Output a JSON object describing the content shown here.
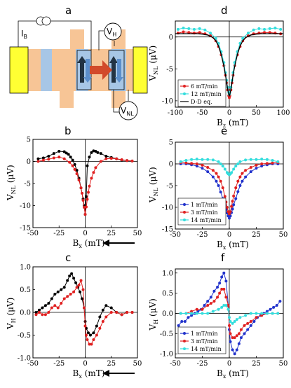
{
  "panel_letters": {
    "a": "a",
    "b": "b",
    "c": "c",
    "d": "d",
    "e": "e",
    "f": "f"
  },
  "device": {
    "source_label": "I",
    "source_sub": "B",
    "vh_label": "V",
    "vh_sub": "H",
    "vnl_label": "V",
    "vnl_sub": "NL",
    "colors": {
      "yellow": "#ffff33",
      "bar": "#f7c596",
      "blue": "#a7c6e6",
      "arrow": "#d24a2a"
    }
  },
  "chart_data": [
    {
      "id": "b",
      "type": "scatter",
      "ylabel": "V",
      "ylabel_sub": "NL",
      "ylabel_unit": " (μV)",
      "xlabel": "B",
      "xlabel_sub": "x",
      "xlabel_unit": " (mT)",
      "xlim": [
        -50,
        50
      ],
      "ylim": [
        -15,
        5
      ],
      "xticks": [
        "-50",
        "-25",
        "0",
        "25",
        "50"
      ],
      "yticks": [
        "5",
        "0",
        "-5",
        "-10",
        "-15"
      ],
      "sweep_arrow": "left",
      "series": [
        {
          "color": "#000000",
          "x": [
            -45,
            -40,
            -35,
            -30,
            -25,
            -20,
            -18,
            -16,
            -14,
            -12,
            -10,
            -8,
            -6,
            -4,
            -2,
            -1,
            0,
            1,
            2,
            4,
            6,
            8,
            10,
            12,
            15,
            20,
            25,
            30,
            35,
            40,
            45
          ],
          "y": [
            0.6,
            0.8,
            1.2,
            1.8,
            2.3,
            2.2,
            1.9,
            1.6,
            1.0,
            0.3,
            -0.7,
            -2.0,
            -3.8,
            -6.0,
            -8.5,
            -10.0,
            -12.0,
            -8.0,
            -1.0,
            1.0,
            2.0,
            2.4,
            2.3,
            2.0,
            1.8,
            1.2,
            0.9,
            0.6,
            0.3,
            0.2,
            0.1
          ]
        },
        {
          "color": "#e02020",
          "x": [
            -45,
            -40,
            -35,
            -30,
            -25,
            -20,
            -15,
            -12,
            -10,
            -8,
            -6,
            -4,
            -3,
            -2,
            -1,
            0,
            1,
            2,
            3,
            4,
            6,
            8,
            10,
            15,
            20,
            25,
            30,
            35,
            40,
            45
          ],
          "y": [
            0.0,
            0.3,
            0.5,
            0.8,
            1.0,
            0.6,
            -0.2,
            -1.0,
            -1.8,
            -2.8,
            -4.2,
            -6.0,
            -7.2,
            -8.8,
            -10.4,
            -12.0,
            -10.3,
            -8.6,
            -7.0,
            -5.6,
            -3.8,
            -2.5,
            -1.4,
            0.0,
            0.6,
            0.7,
            0.6,
            0.4,
            0.2,
            0.1
          ]
        }
      ]
    },
    {
      "id": "c",
      "type": "scatter",
      "ylabel": "V",
      "ylabel_sub": "H",
      "ylabel_unit": " (μV)",
      "xlabel": "B",
      "xlabel_sub": "x",
      "xlabel_unit": " (mT)",
      "xlim": [
        -50,
        50
      ],
      "ylim": [
        -1.0,
        1.0
      ],
      "xticks": [
        "-50",
        "-25",
        "0",
        "25",
        "50"
      ],
      "yticks": [
        "1.0",
        "0.5",
        "0.0",
        "-0.5",
        "-1.0"
      ],
      "sweep_arrow": "left",
      "series": [
        {
          "color": "#000000",
          "x": [
            -47,
            -44,
            -41,
            -38,
            -35,
            -32,
            -29,
            -26,
            -23,
            -20,
            -17,
            -15,
            -13,
            -11,
            -9,
            -7,
            -5,
            -3,
            -1,
            0,
            1,
            3,
            5,
            8,
            11,
            14,
            17,
            20,
            25,
            30,
            35,
            40,
            45
          ],
          "y": [
            0.0,
            0.05,
            0.1,
            0.15,
            0.2,
            0.3,
            0.4,
            0.45,
            0.5,
            0.55,
            0.7,
            0.8,
            0.85,
            0.75,
            0.65,
            0.55,
            0.45,
            0.3,
            0.1,
            -0.2,
            -0.35,
            -0.45,
            -0.5,
            -0.45,
            -0.3,
            -0.1,
            0.05,
            0.15,
            0.1,
            0.0,
            -0.05,
            0.0,
            0.0
          ]
        },
        {
          "color": "#e02020",
          "x": [
            -47,
            -44,
            -41,
            -38,
            -35,
            -32,
            -29,
            -26,
            -23,
            -20,
            -17,
            -14,
            -11,
            -8,
            -6,
            -4,
            -2,
            -1,
            0,
            1,
            2,
            4,
            6,
            8,
            11,
            14,
            17,
            20,
            25,
            30,
            35,
            40,
            45
          ],
          "y": [
            -0.05,
            0.0,
            -0.05,
            -0.05,
            0.0,
            0.1,
            0.15,
            0.1,
            0.2,
            0.3,
            0.35,
            0.4,
            0.45,
            0.55,
            0.6,
            0.7,
            0.5,
            0.1,
            -0.3,
            -0.5,
            -0.6,
            -0.7,
            -0.7,
            -0.6,
            -0.5,
            -0.35,
            -0.2,
            -0.1,
            0.0,
            0.0,
            -0.05,
            0.0,
            0.0
          ]
        }
      ]
    },
    {
      "id": "d",
      "type": "scatter",
      "ylabel": "V",
      "ylabel_sub": "NL",
      "ylabel_unit": " (μV)",
      "xlabel": "B",
      "xlabel_sub": "z",
      "xlabel_unit": " (mT)",
      "xlim": [
        -100,
        100
      ],
      "ylim": [
        -11,
        2.5
      ],
      "xticks": [
        "-100",
        "-50",
        "0",
        "50",
        "100"
      ],
      "yticks": [
        "0",
        "-5",
        "-10"
      ],
      "ytick_vals": [
        0,
        -5,
        -10
      ],
      "legend": [
        "6 mT/min",
        "12 mT/min",
        "D-D eq."
      ],
      "series": [
        {
          "name": "6 mT/min",
          "color": "#e02020",
          "x": [
            -95,
            -85,
            -75,
            -65,
            -55,
            -45,
            -35,
            -25,
            -20,
            -15,
            -10,
            -7,
            -5,
            -3,
            -1,
            0,
            1,
            3,
            5,
            7,
            10,
            15,
            20,
            25,
            35,
            45,
            55,
            65,
            75,
            85,
            95
          ],
          "y": [
            0.6,
            0.8,
            0.7,
            0.6,
            0.7,
            0.5,
            0.2,
            -0.6,
            -1.5,
            -2.8,
            -4.5,
            -6.0,
            -7.2,
            -8.3,
            -9.2,
            -9.5,
            -9.2,
            -8.3,
            -7.2,
            -6.0,
            -4.5,
            -2.8,
            -1.5,
            -0.6,
            0.2,
            0.5,
            0.6,
            0.7,
            0.7,
            0.6,
            0.5
          ]
        },
        {
          "name": "12 mT/min",
          "color": "#33dddd",
          "x": [
            -95,
            -85,
            -75,
            -65,
            -55,
            -45,
            -35,
            -25,
            -20,
            -15,
            -10,
            -7,
            -5,
            -3,
            -1,
            0,
            1,
            3,
            5,
            7,
            10,
            15,
            20,
            25,
            35,
            45,
            55,
            65,
            75,
            85,
            95
          ],
          "y": [
            1.2,
            1.4,
            1.3,
            1.2,
            1.3,
            1.1,
            0.6,
            -0.2,
            -1.0,
            -2.3,
            -4.0,
            -5.6,
            -6.8,
            -7.9,
            -8.7,
            -9.0,
            -8.7,
            -7.9,
            -6.8,
            -5.6,
            -4.0,
            -2.3,
            -1.0,
            -0.2,
            0.6,
            1.1,
            1.3,
            1.2,
            1.3,
            1.4,
            1.2
          ]
        },
        {
          "name": "D-D eq.",
          "color": "#000000",
          "line": true,
          "x": [
            -100,
            -80,
            -60,
            -50,
            -40,
            -30,
            -25,
            -20,
            -15,
            -10,
            -7,
            -5,
            -3,
            -1,
            0,
            1,
            3,
            5,
            7,
            10,
            15,
            20,
            25,
            30,
            40,
            50,
            60,
            80,
            100
          ],
          "y": [
            0.5,
            0.5,
            0.5,
            0.45,
            0.3,
            -0.1,
            -0.6,
            -1.4,
            -2.7,
            -4.6,
            -6.0,
            -7.1,
            -8.2,
            -9.0,
            -9.2,
            -9.0,
            -8.2,
            -7.1,
            -6.0,
            -4.6,
            -2.7,
            -1.4,
            -0.6,
            -0.1,
            0.3,
            0.45,
            0.5,
            0.5,
            0.5
          ]
        }
      ]
    },
    {
      "id": "e",
      "type": "scatter",
      "ylabel": "V",
      "ylabel_sub": "NL",
      "ylabel_unit": " (μV)",
      "xlabel": "B",
      "xlabel_sub": "x",
      "xlabel_unit": " (mT)",
      "xlim": [
        -50,
        50
      ],
      "ylim": [
        -15,
        5
      ],
      "xticks": [
        "-50",
        "-25",
        "0",
        "25",
        "50"
      ],
      "yticks": [
        "5",
        "0",
        "-5",
        "-10",
        "-15"
      ],
      "legend": [
        "1 mT/min",
        "3 mT/min",
        "14 mT/min"
      ],
      "series": [
        {
          "name": "1 mT/min",
          "color": "#2233cc",
          "x": [
            -45,
            -40,
            -35,
            -30,
            -25,
            -20,
            -15,
            -12,
            -10,
            -8,
            -6,
            -4,
            -3,
            -2,
            -1,
            0,
            1,
            2,
            3,
            4,
            6,
            8,
            10,
            12,
            15,
            20,
            25,
            30,
            35,
            40,
            45
          ],
          "y": [
            0.0,
            0.0,
            -0.2,
            -0.5,
            -1.0,
            -1.8,
            -3.0,
            -4.0,
            -5.0,
            -6.5,
            -8.0,
            -9.5,
            -10.5,
            -11.3,
            -12.0,
            -12.5,
            -12.0,
            -11.2,
            -10.4,
            -9.4,
            -8.0,
            -6.4,
            -5.0,
            -4.0,
            -3.0,
            -1.8,
            -1.0,
            -0.5,
            -0.2,
            0.0,
            0.0
          ]
        },
        {
          "name": "3 mT/min",
          "color": "#e02020",
          "x": [
            -45,
            -40,
            -35,
            -30,
            -25,
            -20,
            -15,
            -12,
            -10,
            -8,
            -6,
            -4,
            -3,
            -2,
            -1,
            0,
            1,
            2,
            3,
            4,
            6,
            8,
            10,
            12,
            15,
            20,
            25,
            30,
            35,
            40,
            45
          ],
          "y": [
            0.3,
            0.2,
            0.1,
            0.0,
            -0.3,
            -0.8,
            -1.5,
            -2.2,
            -3.0,
            -4.0,
            -5.5,
            -7.5,
            -8.8,
            -10.0,
            -11.0,
            -11.5,
            -11.0,
            -9.8,
            -8.6,
            -7.4,
            -5.5,
            -4.0,
            -3.0,
            -2.2,
            -1.5,
            -0.8,
            -0.3,
            0.0,
            0.1,
            0.2,
            0.3
          ]
        },
        {
          "name": "14 mT/min",
          "color": "#33dddd",
          "x": [
            -45,
            -40,
            -35,
            -30,
            -25,
            -20,
            -15,
            -10,
            -8,
            -6,
            -4,
            -2,
            -1,
            0,
            1,
            2,
            4,
            6,
            8,
            10,
            15,
            20,
            25,
            30,
            35,
            40,
            45
          ],
          "y": [
            0.5,
            0.8,
            1.0,
            1.1,
            1.0,
            1.0,
            0.9,
            0.5,
            0.0,
            -0.5,
            -1.2,
            -2.0,
            -2.3,
            -2.5,
            -2.3,
            -2.0,
            -1.2,
            -0.5,
            0.0,
            0.5,
            0.9,
            1.0,
            1.0,
            1.1,
            1.0,
            0.8,
            0.5
          ]
        }
      ]
    },
    {
      "id": "f",
      "type": "scatter",
      "ylabel": "V",
      "ylabel_sub": "H",
      "ylabel_unit": " (μV)",
      "xlabel": "B",
      "xlabel_sub": "x",
      "xlabel_unit": " (mT)",
      "xlim": [
        -50,
        50
      ],
      "ylim": [
        -1.1,
        1.1
      ],
      "xticks": [
        "-50",
        "-25",
        "0",
        "25",
        "50"
      ],
      "yticks": [
        "1.0",
        "0.5",
        "0.0",
        "-0.5",
        "-1.0"
      ],
      "ytick_vals": [
        1.0,
        0.5,
        0.0,
        -0.5,
        -1.0
      ],
      "legend": [
        "1 mT/min",
        "3 mT/min",
        "14 mT/min"
      ],
      "series": [
        {
          "name": "1 mT/min",
          "color": "#2233cc",
          "x": [
            -47,
            -44,
            -41,
            -38,
            -35,
            -32,
            -29,
            -26,
            -23,
            -20,
            -17,
            -14,
            -11,
            -9,
            -7,
            -5,
            -3,
            -1,
            0,
            1,
            3,
            5,
            7,
            9,
            11,
            14,
            17,
            20,
            23,
            26,
            29,
            32,
            35,
            38,
            41,
            44,
            47
          ],
          "y": [
            -0.3,
            -0.2,
            -0.2,
            -0.1,
            -0.05,
            0.0,
            0.05,
            0.1,
            0.2,
            0.3,
            0.4,
            0.55,
            0.65,
            0.75,
            0.9,
            1.0,
            0.8,
            0.2,
            -0.4,
            -0.7,
            -0.9,
            -1.0,
            -0.9,
            -0.75,
            -0.6,
            -0.5,
            -0.4,
            -0.3,
            -0.2,
            -0.1,
            -0.05,
            0.0,
            0.05,
            0.1,
            0.15,
            0.2,
            0.3
          ]
        },
        {
          "name": "3 mT/min",
          "color": "#e02020",
          "x": [
            -45,
            -40,
            -35,
            -30,
            -25,
            -20,
            -17,
            -14,
            -11,
            -9,
            -7,
            -5,
            -3,
            -1,
            0,
            1,
            3,
            5,
            7,
            9,
            11,
            14,
            17,
            20,
            25,
            30,
            35,
            40,
            45
          ],
          "y": [
            0.0,
            0.0,
            0.05,
            0.1,
            0.1,
            0.2,
            0.25,
            0.3,
            0.4,
            0.5,
            0.6,
            0.6,
            0.4,
            0.2,
            -0.3,
            -0.5,
            -0.6,
            -0.6,
            -0.55,
            -0.5,
            -0.4,
            -0.3,
            -0.25,
            -0.2,
            -0.1,
            -0.05,
            0.0,
            0.0,
            0.0
          ]
        },
        {
          "name": "14 mT/min",
          "color": "#33dddd",
          "x": [
            -45,
            -40,
            -35,
            -30,
            -25,
            -20,
            -15,
            -10,
            -7,
            -5,
            -3,
            -1,
            0,
            1,
            3,
            5,
            7,
            10,
            15,
            20,
            25,
            30,
            35,
            40,
            45
          ],
          "y": [
            0.0,
            0.0,
            0.0,
            0.0,
            0.0,
            0.0,
            0.05,
            0.1,
            0.15,
            0.2,
            0.2,
            0.1,
            -0.1,
            -0.2,
            -0.25,
            -0.2,
            -0.15,
            -0.1,
            -0.05,
            0.0,
            0.0,
            0.0,
            0.0,
            0.0,
            0.0
          ]
        }
      ]
    }
  ]
}
